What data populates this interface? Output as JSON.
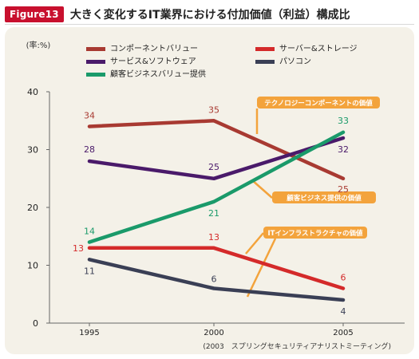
{
  "figure": {
    "badge": "Figure13",
    "title": "大きく変化するIT業界における付加価値（利益）構成比"
  },
  "chart_data": {
    "type": "line",
    "title": "大きく変化するIT業界における付加価値（利益）構成比",
    "ylabel": "(率:%)",
    "xlabel": "",
    "x": [
      "1995",
      "2000",
      "2005"
    ],
    "ylim": [
      0,
      40
    ],
    "yticks": [
      0,
      10,
      20,
      30,
      40
    ],
    "grid": false,
    "legend_position": "top",
    "series": [
      {
        "name": "コンポーネントバリュー",
        "values": [
          34,
          35,
          25
        ],
        "color": "#a83a32",
        "labels": [
          "34",
          "35",
          "25"
        ]
      },
      {
        "name": "サーバー&ストレージ",
        "values": [
          13,
          13,
          6
        ],
        "color": "#d42a2a",
        "labels": [
          "13",
          "13",
          "6"
        ]
      },
      {
        "name": "サービス&ソフトウェア",
        "values": [
          28,
          25,
          32
        ],
        "color": "#4a1a6a",
        "labels": [
          "28",
          "25",
          "32"
        ]
      },
      {
        "name": "パソコン",
        "values": [
          11,
          6,
          4
        ],
        "color": "#3a3f55",
        "labels": [
          "11",
          "6",
          "4"
        ]
      },
      {
        "name": "顧客ビジネスバリュー提供",
        "values": [
          14,
          21,
          33
        ],
        "color": "#1a9a6a",
        "labels": [
          "14",
          "21",
          "33"
        ]
      }
    ],
    "annotations": [
      {
        "text": "テクノロジーコンポーネントの価値"
      },
      {
        "text": "顧客ビジネス提供の価値"
      },
      {
        "text": "ITインフラストラクチャの価値"
      }
    ],
    "source": "(2003　スプリングセキュリティアナリストミーティング)"
  }
}
